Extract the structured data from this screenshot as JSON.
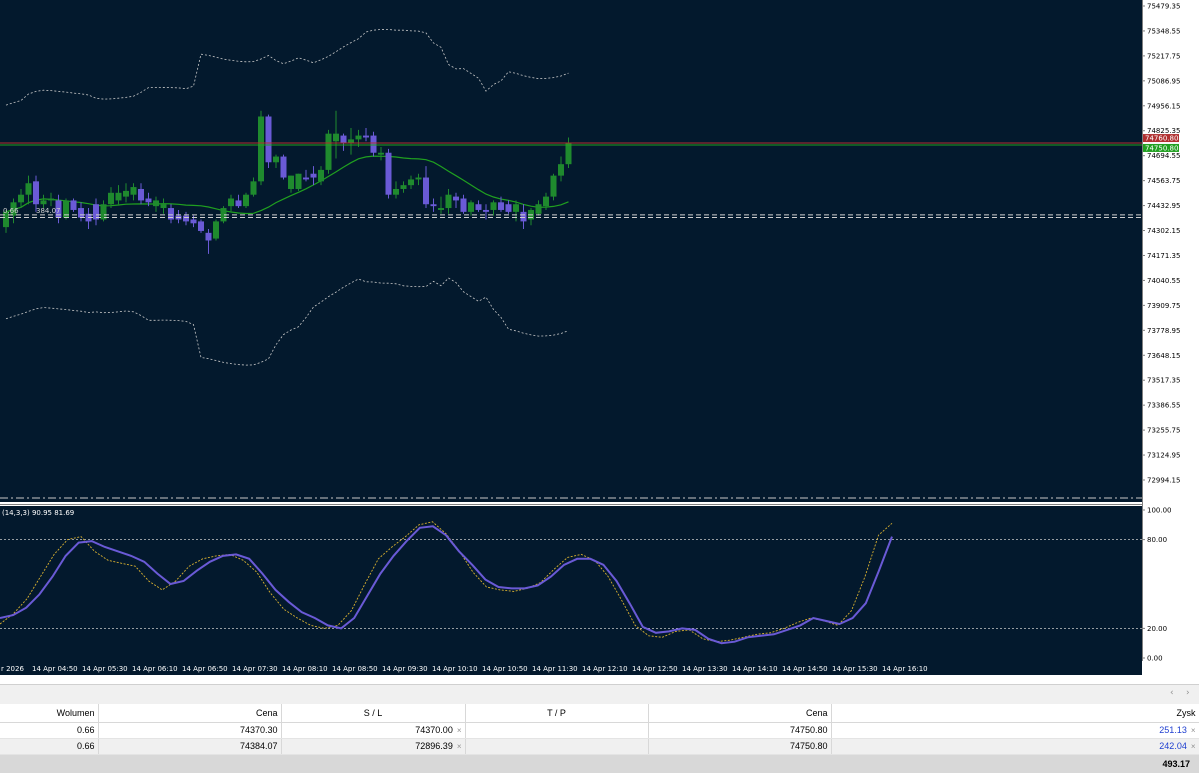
{
  "colors": {
    "background": "#03192d",
    "bull_candle": "#1f8a2e",
    "bear_candle": "#6a5ad6",
    "ma_up": "#20a020",
    "ma_down": "#6a5ad6",
    "band": "#c8c8c8",
    "stoch_main": "#6a5ad6",
    "stoch_signal": "#d8b030",
    "level_line": "#c8c8c8",
    "ask_line": "#b03030",
    "bid_line": "#20a020",
    "profit_text": "#1f3fd0"
  },
  "chart": {
    "price_axis_labels": [
      "75479.35",
      "75348.55",
      "75217.75",
      "75086.95",
      "74956.15",
      "74825.35",
      "74694.55",
      "74563.75",
      "74432.95",
      "74302.15",
      "74171.35",
      "74040.55",
      "73909.75",
      "73778.95",
      "73648.15",
      "73517.35",
      "73386.55",
      "73255.75",
      "73124.95",
      "72994.15"
    ],
    "ask_tag": "74760.80",
    "bid_tag": "74750.80",
    "trade_tag_left": "0.66",
    "trade_tag_right": "384.07",
    "time_axis_labels": [
      "r 2026",
      "14 Apr 04:50",
      "14 Apr 05:30",
      "14 Apr 06:10",
      "14 Apr 06:50",
      "14 Apr 07:30",
      "14 Apr 08:10",
      "14 Apr 08:50",
      "14 Apr 09:30",
      "14 Apr 10:10",
      "14 Apr 10:50",
      "14 Apr 11:30",
      "14 Apr 12:10",
      "14 Apr 12:50",
      "14 Apr 13:30",
      "14 Apr 14:10",
      "14 Apr 14:50",
      "14 Apr 15:30",
      "14 Apr 16:10"
    ],
    "oscillator_label": "(14,3,3) 90.95 81.69",
    "oscillator_axis_labels": [
      "100.00",
      "80.00",
      "20.00",
      "0.00"
    ]
  },
  "chart_data": {
    "type": "candlestick",
    "price_range": [
      72994.15,
      75479.35
    ],
    "candles": [
      {
        "o": 74320,
        "h": 74410,
        "l": 74290,
        "c": 74400
      },
      {
        "o": 74380,
        "h": 74470,
        "l": 74340,
        "c": 74450
      },
      {
        "o": 74450,
        "h": 74520,
        "l": 74420,
        "c": 74490
      },
      {
        "o": 74490,
        "h": 74590,
        "l": 74440,
        "c": 74550
      },
      {
        "o": 74560,
        "h": 74590,
        "l": 74400,
        "c": 74440
      },
      {
        "o": 74440,
        "h": 74490,
        "l": 74420,
        "c": 74460
      },
      {
        "o": 74460,
        "h": 74500,
        "l": 74430,
        "c": 74470
      },
      {
        "o": 74460,
        "h": 74490,
        "l": 74340,
        "c": 74370
      },
      {
        "o": 74370,
        "h": 74470,
        "l": 74360,
        "c": 74460
      },
      {
        "o": 74460,
        "h": 74470,
        "l": 74400,
        "c": 74410
      },
      {
        "o": 74420,
        "h": 74450,
        "l": 74350,
        "c": 74370
      },
      {
        "o": 74390,
        "h": 74420,
        "l": 74310,
        "c": 74350
      },
      {
        "o": 74440,
        "h": 74470,
        "l": 74330,
        "c": 74360
      },
      {
        "o": 74360,
        "h": 74460,
        "l": 74350,
        "c": 74440
      },
      {
        "o": 74440,
        "h": 74530,
        "l": 74420,
        "c": 74500
      },
      {
        "o": 74460,
        "h": 74540,
        "l": 74440,
        "c": 74500
      },
      {
        "o": 74480,
        "h": 74550,
        "l": 74450,
        "c": 74510
      },
      {
        "o": 74490,
        "h": 74550,
        "l": 74460,
        "c": 74530
      },
      {
        "o": 74520,
        "h": 74550,
        "l": 74440,
        "c": 74460
      },
      {
        "o": 74470,
        "h": 74500,
        "l": 74430,
        "c": 74450
      },
      {
        "o": 74430,
        "h": 74480,
        "l": 74400,
        "c": 74460
      },
      {
        "o": 74420,
        "h": 74470,
        "l": 74390,
        "c": 74440
      },
      {
        "o": 74420,
        "h": 74440,
        "l": 74340,
        "c": 74360
      },
      {
        "o": 74380,
        "h": 74410,
        "l": 74340,
        "c": 74360
      },
      {
        "o": 74380,
        "h": 74400,
        "l": 74330,
        "c": 74350
      },
      {
        "o": 74360,
        "h": 74380,
        "l": 74320,
        "c": 74340
      },
      {
        "o": 74350,
        "h": 74360,
        "l": 74290,
        "c": 74300
      },
      {
        "o": 74290,
        "h": 74310,
        "l": 74180,
        "c": 74250
      },
      {
        "o": 74260,
        "h": 74360,
        "l": 74250,
        "c": 74350
      },
      {
        "o": 74350,
        "h": 74430,
        "l": 74340,
        "c": 74420
      },
      {
        "o": 74430,
        "h": 74490,
        "l": 74400,
        "c": 74470
      },
      {
        "o": 74460,
        "h": 74490,
        "l": 74420,
        "c": 74430
      },
      {
        "o": 74430,
        "h": 74500,
        "l": 74420,
        "c": 74490
      },
      {
        "o": 74490,
        "h": 74580,
        "l": 74480,
        "c": 74560
      },
      {
        "o": 74560,
        "h": 74930,
        "l": 74540,
        "c": 74900
      },
      {
        "o": 74900,
        "h": 74910,
        "l": 74630,
        "c": 74660
      },
      {
        "o": 74660,
        "h": 74700,
        "l": 74630,
        "c": 74690
      },
      {
        "o": 74690,
        "h": 74700,
        "l": 74570,
        "c": 74580
      },
      {
        "o": 74520,
        "h": 74590,
        "l": 74500,
        "c": 74590
      },
      {
        "o": 74520,
        "h": 74600,
        "l": 74510,
        "c": 74600
      },
      {
        "o": 74580,
        "h": 74620,
        "l": 74560,
        "c": 74570
      },
      {
        "o": 74600,
        "h": 74640,
        "l": 74540,
        "c": 74580
      },
      {
        "o": 74560,
        "h": 74640,
        "l": 74540,
        "c": 74620
      },
      {
        "o": 74620,
        "h": 74830,
        "l": 74600,
        "c": 74810
      },
      {
        "o": 74770,
        "h": 74930,
        "l": 74680,
        "c": 74810
      },
      {
        "o": 74800,
        "h": 74810,
        "l": 74720,
        "c": 74760
      },
      {
        "o": 74760,
        "h": 74840,
        "l": 74700,
        "c": 74780
      },
      {
        "o": 74780,
        "h": 74830,
        "l": 74740,
        "c": 74800
      },
      {
        "o": 74800,
        "h": 74840,
        "l": 74770,
        "c": 74790
      },
      {
        "o": 74800,
        "h": 74820,
        "l": 74690,
        "c": 74710
      },
      {
        "o": 74700,
        "h": 74740,
        "l": 74670,
        "c": 74710
      },
      {
        "o": 74710,
        "h": 74730,
        "l": 74470,
        "c": 74490
      },
      {
        "o": 74490,
        "h": 74560,
        "l": 74470,
        "c": 74520
      },
      {
        "o": 74520,
        "h": 74560,
        "l": 74500,
        "c": 74540
      },
      {
        "o": 74540,
        "h": 74590,
        "l": 74520,
        "c": 74570
      },
      {
        "o": 74570,
        "h": 74600,
        "l": 74540,
        "c": 74580
      },
      {
        "o": 74580,
        "h": 74640,
        "l": 74420,
        "c": 74440
      },
      {
        "o": 74440,
        "h": 74470,
        "l": 74400,
        "c": 74430
      },
      {
        "o": 74410,
        "h": 74480,
        "l": 74390,
        "c": 74420
      },
      {
        "o": 74420,
        "h": 74520,
        "l": 74390,
        "c": 74490
      },
      {
        "o": 74480,
        "h": 74500,
        "l": 74420,
        "c": 74460
      },
      {
        "o": 74470,
        "h": 74490,
        "l": 74390,
        "c": 74400
      },
      {
        "o": 74400,
        "h": 74460,
        "l": 74380,
        "c": 74450
      },
      {
        "o": 74440,
        "h": 74460,
        "l": 74400,
        "c": 74410
      },
      {
        "o": 74410,
        "h": 74440,
        "l": 74360,
        "c": 74400
      },
      {
        "o": 74410,
        "h": 74460,
        "l": 74380,
        "c": 74450
      },
      {
        "o": 74450,
        "h": 74480,
        "l": 74400,
        "c": 74410
      },
      {
        "o": 74440,
        "h": 74460,
        "l": 74390,
        "c": 74400
      },
      {
        "o": 74400,
        "h": 74460,
        "l": 74350,
        "c": 74440
      },
      {
        "o": 74400,
        "h": 74440,
        "l": 74310,
        "c": 74350
      },
      {
        "o": 74360,
        "h": 74420,
        "l": 74330,
        "c": 74410
      },
      {
        "o": 74390,
        "h": 74460,
        "l": 74380,
        "c": 74440
      },
      {
        "o": 74430,
        "h": 74500,
        "l": 74410,
        "c": 74480
      },
      {
        "o": 74480,
        "h": 74600,
        "l": 74460,
        "c": 74590
      },
      {
        "o": 74590,
        "h": 74690,
        "l": 74560,
        "c": 74650
      },
      {
        "o": 74650,
        "h": 74790,
        "l": 74630,
        "c": 74760
      }
    ],
    "stochastic_main": [
      27,
      29,
      34,
      43,
      55,
      69,
      78,
      79,
      75,
      72,
      69,
      65,
      57,
      50,
      52,
      59,
      65,
      69,
      70,
      67,
      57,
      46,
      38,
      31,
      27,
      22,
      20,
      27,
      42,
      57,
      69,
      79,
      88,
      89,
      83,
      72,
      63,
      53,
      48,
      47,
      47,
      49,
      55,
      63,
      67,
      67,
      63,
      52,
      37,
      21,
      17,
      18,
      20,
      19,
      13,
      10,
      11,
      14,
      15,
      16,
      19,
      22,
      27,
      25,
      23,
      27,
      37,
      59,
      82
    ],
    "stochastic_signal": [
      23,
      30,
      40,
      55,
      70,
      80,
      82,
      72,
      66,
      64,
      62,
      52,
      46,
      52,
      62,
      67,
      69,
      70,
      66,
      58,
      44,
      33,
      27,
      22,
      20,
      22,
      32,
      50,
      67,
      75,
      82,
      90,
      92,
      84,
      72,
      58,
      48,
      46,
      45,
      47,
      51,
      60,
      68,
      70,
      66,
      55,
      39,
      22,
      15,
      14,
      18,
      19,
      13,
      11,
      12,
      14,
      16,
      17,
      20,
      24,
      27,
      25,
      22,
      32,
      55,
      83,
      91
    ],
    "oscillator_levels": [
      80,
      20
    ]
  },
  "table": {
    "headers": {
      "volume": "Wolumen",
      "price": "Cena",
      "sl": "S / L",
      "tp": "T / P",
      "current_price": "Cena",
      "profit": "Zysk"
    },
    "rows": [
      {
        "volume": "0.66",
        "price": "74370.30",
        "sl": "74370.00",
        "tp": "",
        "current_price": "74750.80",
        "profit": "251.13"
      },
      {
        "volume": "0.66",
        "price": "74384.07",
        "sl": "72896.39",
        "tp": "",
        "current_price": "74750.80",
        "profit": "242.04"
      }
    ],
    "total_profit": "493.17",
    "close_glyph": "×"
  },
  "scroll": {
    "left_arrow": "‹",
    "right_arrow": "›"
  }
}
